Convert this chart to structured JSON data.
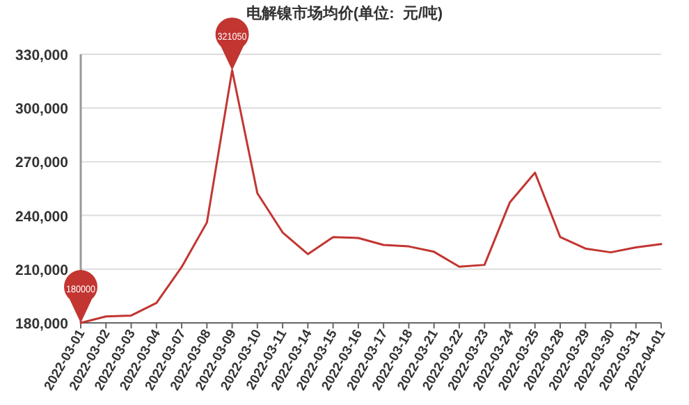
{
  "chart_data": {
    "type": "line",
    "title": "电解镍市场均价(单位:  元/吨)",
    "categories": [
      "2022-03-01",
      "2022-03-02",
      "2022-03-03",
      "2022-03-04",
      "2022-03-07",
      "2022-03-08",
      "2022-03-09",
      "2022-03-10",
      "2022-03-11",
      "2022-03-14",
      "2022-03-15",
      "2022-03-16",
      "2022-03-17",
      "2022-03-18",
      "2022-03-21",
      "2022-03-22",
      "2022-03-23",
      "2022-03-24",
      "2022-03-25",
      "2022-03-28",
      "2022-03-29",
      "2022-03-30",
      "2022-03-31",
      "2022-04-01"
    ],
    "series": [
      {
        "color": "#c23531",
        "values": [
          180000,
          183600,
          184100,
          191100,
          211200,
          236100,
          321050,
          252400,
          230500,
          218400,
          227900,
          227400,
          223500,
          222700,
          219700,
          211400,
          212400,
          247200,
          263900,
          227900,
          221500,
          219400,
          222200,
          224000
        ]
      }
    ],
    "ylim": [
      180000,
      330000
    ],
    "yticks": [
      {
        "value": 180000,
        "label": "180,000"
      },
      {
        "value": 210000,
        "label": "210,000"
      },
      {
        "value": 240000,
        "label": "240,000"
      },
      {
        "value": 270000,
        "label": "270,000"
      },
      {
        "value": 300000,
        "label": "300,000"
      },
      {
        "value": 330000,
        "label": "330,000"
      }
    ],
    "grid": "y",
    "marker": "none",
    "line_style": "solid",
    "annotations": [
      {
        "text": "321050",
        "x": "2022-03-09",
        "y": 321050
      },
      {
        "text": "180000",
        "x": "2022-03-01",
        "y": 180000
      }
    ]
  }
}
